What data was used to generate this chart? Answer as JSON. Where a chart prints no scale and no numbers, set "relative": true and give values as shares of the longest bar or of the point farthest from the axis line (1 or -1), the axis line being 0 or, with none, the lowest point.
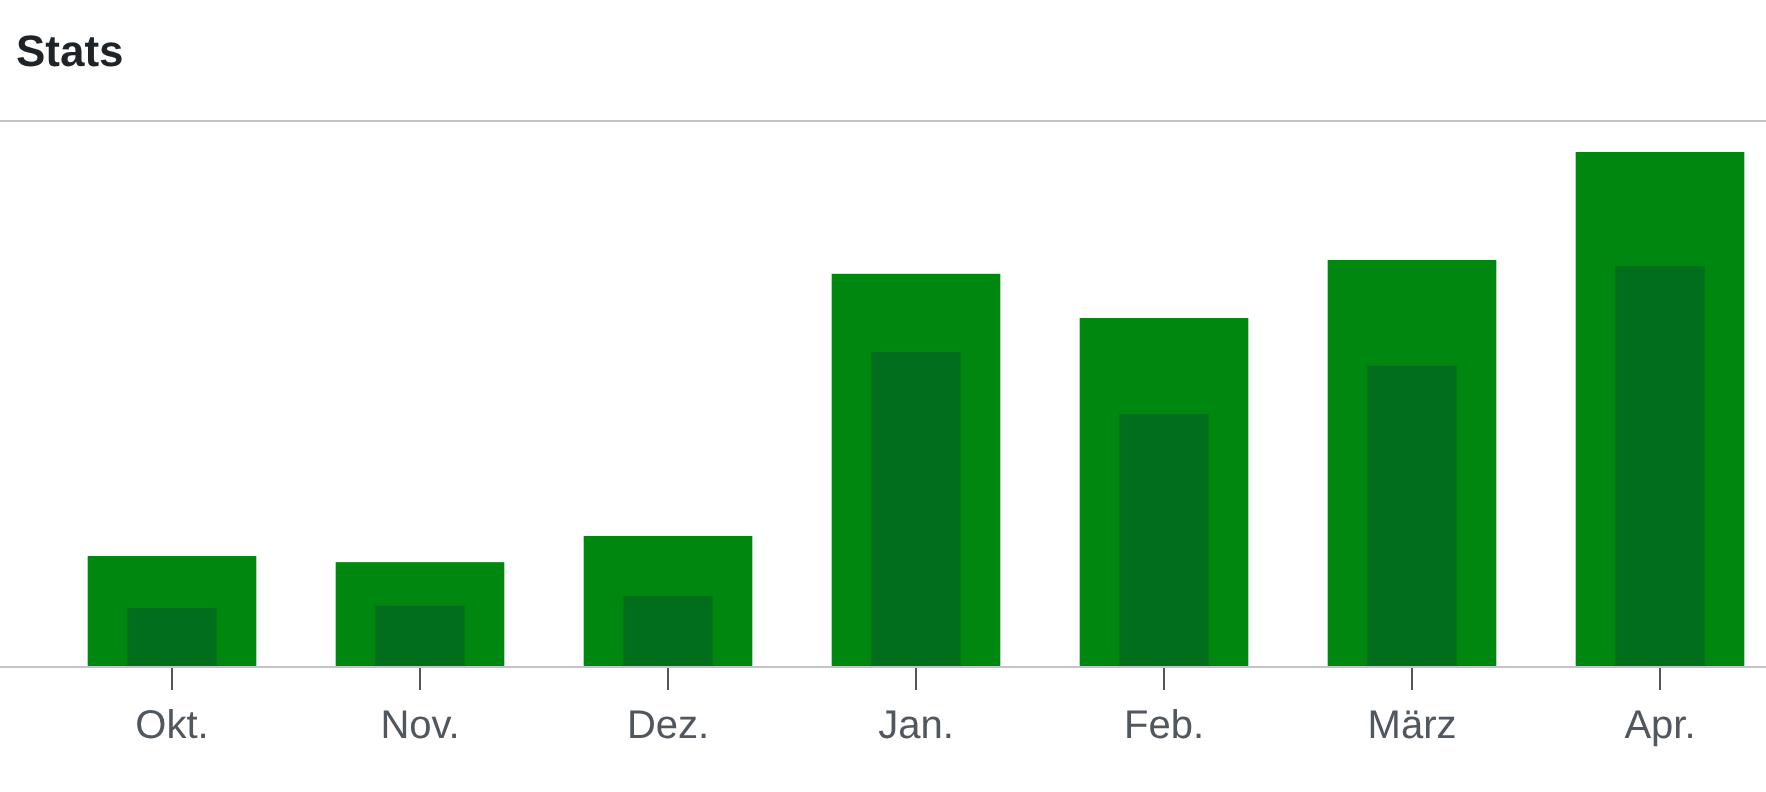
{
  "chart_data": {
    "type": "bar",
    "title": "Stats",
    "relative": true,
    "categories": [
      "Okt.",
      "Nov.",
      "Dez.",
      "Jan.",
      "Feb.",
      "März",
      "Apr."
    ],
    "series": [
      {
        "color": "#008710",
        "values": [
          0.214,
          0.202,
          0.253,
          0.763,
          0.677,
          0.79,
          1
        ]
      },
      {
        "color": "#006e1a",
        "values": [
          0.113,
          0.117,
          0.136,
          0.611,
          0.49,
          0.584,
          0.778
        ]
      }
    ]
  }
}
